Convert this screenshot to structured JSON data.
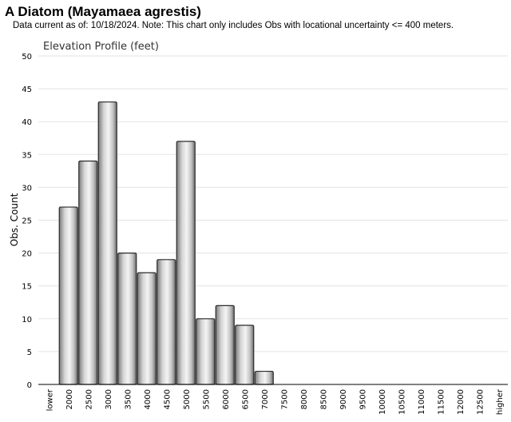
{
  "header": {
    "title": "A Diatom   (Mayamaea agrestis)",
    "subtitle": "Data current as of: 10/18/2024.    Note: This chart only includes Obs with locational uncertainty <= 400 meters."
  },
  "chart_data": {
    "type": "bar",
    "title": "Elevation Profile (feet)",
    "xlabel": "",
    "ylabel": "Obs. Count",
    "ylim": [
      0,
      50
    ],
    "yticks": [
      0,
      5,
      10,
      15,
      20,
      25,
      30,
      35,
      40,
      45,
      50
    ],
    "grid": true,
    "categories": [
      "lower",
      "2000",
      "2500",
      "3000",
      "3500",
      "4000",
      "4500",
      "5000",
      "5500",
      "6000",
      "6500",
      "7000",
      "7500",
      "8000",
      "8500",
      "9000",
      "9500",
      "10000",
      "10500",
      "11000",
      "11500",
      "12000",
      "12500",
      "higher"
    ],
    "values": [
      0,
      27,
      34,
      43,
      20,
      17,
      19,
      37,
      10,
      12,
      9,
      2,
      0,
      0,
      0,
      0,
      0,
      0,
      0,
      0,
      0,
      0,
      0,
      0
    ],
    "bar_color": "#c8c8c8"
  }
}
